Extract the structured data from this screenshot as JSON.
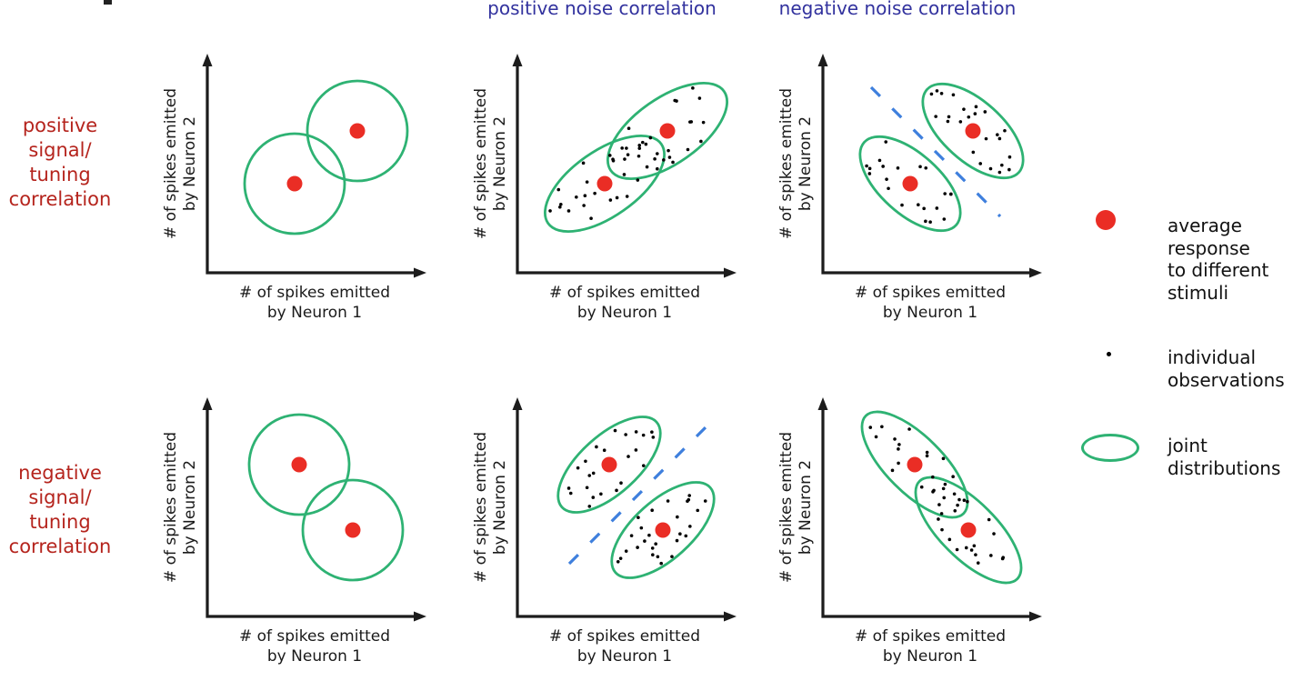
{
  "figure": {
    "description": "Schematic diagram of signal (tuning) correlation vs noise correlation between responses of two neurons"
  },
  "column_headers": [
    {
      "label": "positive noise correlation"
    },
    {
      "label": "negative noise correlation"
    }
  ],
  "row_labels": [
    {
      "lines": [
        "positive",
        "signal/",
        "tuning",
        "correlation"
      ]
    },
    {
      "lines": [
        "negative",
        "signal/",
        "tuning",
        "correlation"
      ]
    }
  ],
  "axes": {
    "x_label_lines": [
      "# of spikes emitted",
      "by Neuron 1"
    ],
    "y_label_lines": [
      "# of spikes emitted",
      "by Neuron 2"
    ]
  },
  "legend": {
    "items": [
      {
        "symbol": "red-dot",
        "lines": [
          "average",
          "response",
          "to different",
          "stimuli"
        ]
      },
      {
        "symbol": "black-dot",
        "lines": [
          "individual",
          "observations"
        ]
      },
      {
        "symbol": "green-ellipse",
        "lines": [
          "joint",
          "distributions"
        ]
      }
    ]
  },
  "panels": [
    {
      "name": "positive-signal-baseline",
      "signal_correlation": "positive",
      "noise_correlation": "none",
      "distribution_shape": "circle",
      "shows_observations": false,
      "shows_separator": false
    },
    {
      "name": "positive-signal-positive-noise",
      "signal_correlation": "positive",
      "noise_correlation": "positive",
      "distribution_shape": "tilted-ellipse",
      "shows_observations": true,
      "shows_separator": false
    },
    {
      "name": "positive-signal-negative-noise",
      "signal_correlation": "positive",
      "noise_correlation": "negative",
      "distribution_shape": "tilted-ellipse",
      "shows_observations": true,
      "shows_separator": true
    },
    {
      "name": "negative-signal-baseline",
      "signal_correlation": "negative",
      "noise_correlation": "none",
      "distribution_shape": "circle",
      "shows_observations": false,
      "shows_separator": false
    },
    {
      "name": "negative-signal-positive-noise",
      "signal_correlation": "negative",
      "noise_correlation": "positive",
      "distribution_shape": "tilted-ellipse",
      "shows_observations": true,
      "shows_separator": true
    },
    {
      "name": "negative-signal-negative-noise",
      "signal_correlation": "negative",
      "noise_correlation": "negative",
      "distribution_shape": "tilted-ellipse",
      "shows_observations": true,
      "shows_separator": false
    }
  ],
  "colors": {
    "row_label": "#b5241d",
    "column_header": "#32329e",
    "distribution_outline": "#2eb273",
    "mean_dot": "#ea2d25",
    "observation_dot": "#000000",
    "separator_dash": "#3e7fdd",
    "axis": "#1c1c1c",
    "text": "#1a1a1a"
  }
}
